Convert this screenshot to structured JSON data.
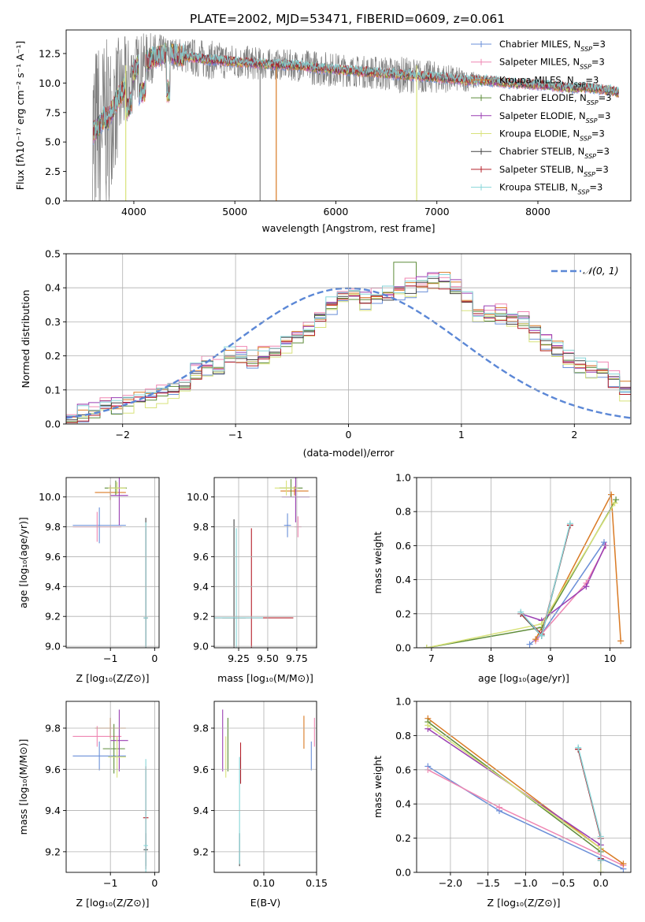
{
  "figure": {
    "title": "PLATE=2002, MJD=53471, FIBERID=0609, z=0.061"
  },
  "colors": {
    "Chabrier MILES": "#6a8fd8",
    "Salpeter MILES": "#ef86b2",
    "Kroupa MILES": "#d97a24",
    "Chabrier ELODIE": "#5e8c3a",
    "Salpeter ELODIE": "#9a3fb3",
    "Kroupa ELODIE": "#d8e27a",
    "Chabrier STELIB": "#444444",
    "Salpeter STELIB": "#b5202a",
    "Kroupa STELIB": "#86d6d8",
    "normal": "#5b87d6",
    "data": "#808080"
  },
  "chart_data": [
    {
      "id": "spectrum",
      "type": "line",
      "xlabel": "wavelength [Angstrom, rest frame]",
      "ylabel": "Flux [fλ10⁻¹⁷ erg cm⁻² s⁻¹ A⁻¹]",
      "xlim": [
        3330,
        8920
      ],
      "ylim": [
        0,
        14.5
      ],
      "xticks": [
        4000,
        5000,
        6000,
        7000,
        8000
      ],
      "yticks": [
        "0.0",
        "2.5",
        "5.0",
        "7.5",
        "10.0",
        "12.5"
      ],
      "legend_position": "top-right",
      "legend": [
        "Chabrier MILES, N_SSP=3",
        "Salpeter MILES, N_SSP=3",
        "Kroupa MILES, N_SSP=3",
        "Chabrier ELODIE, N_SSP=3",
        "Salpeter ELODIE, N_SSP=3",
        "Kroupa ELODIE, N_SSP=3",
        "Chabrier STELIB, N_SSP=3",
        "Salpeter STELIB, N_SSP=3",
        "Kroupa STELIB, N_SSP=3"
      ],
      "model_continuum": {
        "x": [
          3600,
          3650,
          3700,
          3750,
          3800,
          3850,
          3900,
          3950,
          4000,
          4050,
          4100,
          4200,
          4300,
          4400,
          4500,
          4700,
          5000,
          5300,
          5600,
          5900,
          6200,
          6500,
          6800,
          7100,
          7300,
          7500,
          7700,
          7900,
          8100,
          8300,
          8500,
          8700,
          8800
        ],
        "y": [
          5.8,
          6.3,
          7.0,
          7.0,
          8.0,
          8.8,
          9.5,
          10.0,
          11.0,
          11.6,
          11.8,
          12.2,
          12.5,
          12.5,
          12.3,
          12.0,
          11.8,
          11.6,
          11.5,
          11.2,
          11.0,
          10.8,
          10.6,
          10.4,
          10.2,
          10.2,
          10.0,
          9.9,
          9.8,
          9.6,
          9.6,
          9.4,
          9.2
        ]
      },
      "data_envelope": {
        "x": [
          3600,
          3800,
          4000,
          4200,
          4400,
          4600,
          5000,
          5400,
          5800,
          6200,
          6600,
          7000,
          7200,
          7400
        ],
        "y_max": [
          14.5,
          14.5,
          14.5,
          14.5,
          14.0,
          14.0,
          13.5,
          13.0,
          13.0,
          12.5,
          12.5,
          12.0,
          11.5,
          11.0
        ]
      },
      "spikes": [
        {
          "x": 3920,
          "y": 0.0,
          "series": "Kroupa ELODIE"
        },
        {
          "x": 5410,
          "y": 0.0,
          "series": "Kroupa MILES"
        },
        {
          "x": 6800,
          "y": 0.0,
          "series": "Kroupa ELODIE"
        },
        {
          "x": 5250,
          "y": 0.0,
          "series": "data"
        }
      ]
    },
    {
      "id": "residual_hist",
      "type": "step",
      "xlabel": "(data-model)/error",
      "ylabel": "Normed distribution",
      "xlim": [
        -2.5,
        2.5
      ],
      "ylim": [
        0,
        0.5
      ],
      "xticks": [
        "−2",
        "−1",
        "0",
        "1",
        "2"
      ],
      "yticks": [
        "0.0",
        "0.1",
        "0.2",
        "0.3",
        "0.4",
        "0.5"
      ],
      "legend_position": "top-right",
      "legend": [
        "𝒩(0, 1)"
      ],
      "bin_edges_start": -2.5,
      "bin_width": 0.1,
      "base_values": [
        0.03,
        0.03,
        0.04,
        0.05,
        0.05,
        0.06,
        0.07,
        0.08,
        0.09,
        0.1,
        0.12,
        0.15,
        0.17,
        0.16,
        0.2,
        0.2,
        0.19,
        0.2,
        0.22,
        0.24,
        0.26,
        0.28,
        0.31,
        0.35,
        0.37,
        0.38,
        0.36,
        0.37,
        0.38,
        0.39,
        0.4,
        0.41,
        0.42,
        0.42,
        0.4,
        0.36,
        0.32,
        0.32,
        0.32,
        0.31,
        0.3,
        0.27,
        0.24,
        0.22,
        0.19,
        0.17,
        0.16,
        0.15,
        0.13,
        0.1
      ],
      "series_offsets": [
        {
          "name": "Chabrier MILES",
          "shift": -0.012
        },
        {
          "name": "Salpeter MILES",
          "shift": 0.015
        },
        {
          "name": "Kroupa MILES",
          "shift": 0.008
        },
        {
          "name": "Chabrier ELODIE",
          "shift": -0.005
        },
        {
          "name": "Salpeter ELODIE",
          "shift": 0.01
        },
        {
          "name": "Kroupa ELODIE",
          "shift": -0.015
        },
        {
          "name": "Chabrier STELIB",
          "shift": 0.0
        },
        {
          "name": "Salpeter STELIB",
          "shift": -0.008
        },
        {
          "name": "Kroupa STELIB",
          "shift": 0.012
        }
      ]
    },
    {
      "id": "age_vs_Z",
      "type": "errorbar",
      "xlabel": "Z [log₁₀(Z/Z⊙)]",
      "ylabel": "age  [log₁₀(age/yr)]",
      "xlim": [
        -2.0,
        0.1
      ],
      "ylim": [
        8.99,
        10.13
      ],
      "xticks": [
        [
          "−1",
          -1
        ],
        [
          "0",
          0
        ]
      ],
      "yticks": [
        "9.0",
        "9.2",
        "9.4",
        "9.6",
        "9.8",
        "10.0"
      ],
      "points": [
        {
          "series": "Chabrier MILES",
          "x": -1.25,
          "xerr": 0.6,
          "y": 9.81,
          "yerr": 0.12
        },
        {
          "series": "Salpeter MILES",
          "x": -1.3,
          "xerr": 0.55,
          "y": 9.8,
          "yerr": 0.1
        },
        {
          "series": "Kroupa MILES",
          "x": -1.0,
          "xerr": 0.35,
          "y": 10.03,
          "yerr": 0.05
        },
        {
          "series": "Chabrier ELODIE",
          "x": -0.88,
          "xerr": 0.25,
          "y": 10.06,
          "yerr": 0.05
        },
        {
          "series": "Salpeter ELODIE",
          "x": -0.8,
          "xerr": 0.2,
          "y": 10.01,
          "yerr": 0.2
        },
        {
          "series": "Kroupa ELODIE",
          "x": -0.85,
          "xerr": 0.2,
          "y": 10.06,
          "yerr": 0.04
        },
        {
          "series": "Chabrier STELIB",
          "x": -0.2,
          "xerr": 0.05,
          "y": 9.19,
          "yerr": 0.67
        },
        {
          "series": "Salpeter STELIB",
          "x": -0.2,
          "xerr": 0.04,
          "y": 9.19,
          "yerr": 0.6
        },
        {
          "series": "Kroupa STELIB",
          "x": -0.2,
          "xerr": 0.05,
          "y": 9.19,
          "yerr": 0.64
        }
      ]
    },
    {
      "id": "age_vs_mass",
      "type": "errorbar",
      "xlabel": "mass [log₁₀(M/M⊙)]",
      "ylabel": "",
      "xlim": [
        9.04,
        9.92
      ],
      "ylim": [
        8.99,
        10.13
      ],
      "xticks": [
        [
          "9.25",
          9.25
        ],
        [
          "9.50",
          9.5
        ],
        [
          "9.75",
          9.75
        ]
      ],
      "yticks": [
        "9.0",
        "9.2",
        "9.4",
        "9.6",
        "9.8",
        "10.0"
      ],
      "points": [
        {
          "series": "Chabrier MILES",
          "x": 9.67,
          "xerr": 0.03,
          "y": 9.81,
          "yerr": 0.08
        },
        {
          "series": "Salpeter MILES",
          "x": 9.76,
          "xerr": 0.03,
          "y": 9.8,
          "yerr": 0.07
        },
        {
          "series": "Kroupa MILES",
          "x": 9.73,
          "xerr": 0.12,
          "y": 10.04,
          "yerr": 0.03
        },
        {
          "series": "Chabrier ELODIE",
          "x": 9.7,
          "xerr": 0.1,
          "y": 10.06,
          "yerr": 0.06
        },
        {
          "series": "Salpeter ELODIE",
          "x": 9.74,
          "xerr": 0.12,
          "y": 10.0,
          "yerr": 0.17
        },
        {
          "series": "Kroupa ELODIE",
          "x": 9.66,
          "xerr": 0.1,
          "y": 10.06,
          "yerr": 0.05
        },
        {
          "series": "Chabrier STELIB",
          "x": 9.21,
          "xerr": 0.1,
          "y": 9.19,
          "yerr": 0.66
        },
        {
          "series": "Salpeter STELIB",
          "x": 9.36,
          "xerr": 0.36,
          "y": 9.19,
          "yerr": 0.6
        },
        {
          "series": "Kroupa STELIB",
          "x": 9.23,
          "xerr": 0.23,
          "y": 9.19,
          "yerr": 0.6
        }
      ]
    },
    {
      "id": "weight_vs_age",
      "type": "line",
      "xlabel": "age  [log₁₀(age/yr)]",
      "ylabel": "mass weight",
      "xlim": [
        6.75,
        10.35
      ],
      "ylim": [
        0,
        1.0
      ],
      "xticks": [
        [
          "7",
          7
        ],
        [
          "8",
          8
        ],
        [
          "9",
          9
        ],
        [
          "10",
          10
        ]
      ],
      "yticks": [
        "0.0",
        "0.2",
        "0.4",
        "0.6",
        "0.8",
        "1.0"
      ],
      "series": [
        {
          "name": "Chabrier MILES",
          "x": [
            8.65,
            8.85,
            9.9
          ],
          "y": [
            0.02,
            0.08,
            0.62
          ]
        },
        {
          "name": "Salpeter MILES",
          "x": [
            8.75,
            9.6,
            9.93
          ],
          "y": [
            0.04,
            0.38,
            0.6
          ]
        },
        {
          "name": "Kroupa MILES",
          "x": [
            8.75,
            10.02,
            10.18
          ],
          "y": [
            0.05,
            0.9,
            0.04
          ]
        },
        {
          "name": "Chabrier ELODIE",
          "x": [
            6.92,
            8.85,
            10.1
          ],
          "y": [
            0.0,
            0.12,
            0.87
          ]
        },
        {
          "name": "Salpeter ELODIE",
          "x": [
            8.5,
            8.85,
            9.6,
            9.92
          ],
          "y": [
            0.2,
            0.16,
            0.36,
            0.6
          ]
        },
        {
          "name": "Kroupa ELODIE",
          "x": [
            6.92,
            8.85,
            10.08
          ],
          "y": [
            0.0,
            0.14,
            0.85
          ]
        },
        {
          "name": "Chabrier STELIB",
          "x": [
            8.5,
            8.85,
            9.33
          ],
          "y": [
            0.2,
            0.07,
            0.72
          ]
        },
        {
          "name": "Salpeter STELIB",
          "x": [
            8.5,
            8.85,
            9.33
          ],
          "y": [
            0.2,
            0.08,
            0.72
          ]
        },
        {
          "name": "Kroupa STELIB",
          "x": [
            8.5,
            8.85,
            9.33
          ],
          "y": [
            0.21,
            0.07,
            0.73
          ]
        }
      ]
    },
    {
      "id": "mass_vs_Z",
      "type": "errorbar",
      "xlabel": "Z [log₁₀(Z/Z⊙)]",
      "ylabel": "mass [log₁₀(M/M⊙)]",
      "xlim": [
        -2.0,
        0.1
      ],
      "ylim": [
        9.1,
        9.93
      ],
      "xticks": [
        [
          "−1",
          -1
        ],
        [
          "0",
          0
        ]
      ],
      "yticks": [
        "9.2",
        "9.4",
        "9.6",
        "9.8"
      ],
      "points": [
        {
          "series": "Chabrier MILES",
          "x": -1.25,
          "xerr": 0.6,
          "y": 9.665,
          "yerr": 0.07
        },
        {
          "series": "Salpeter MILES",
          "x": -1.3,
          "xerr": 0.55,
          "y": 9.76,
          "yerr": 0.05
        },
        {
          "series": "Kroupa MILES",
          "x": -1.0,
          "xerr": 0.35,
          "y": 9.8,
          "yerr": 0.05
        },
        {
          "series": "Chabrier ELODIE",
          "x": -0.92,
          "xerr": 0.25,
          "y": 9.7,
          "yerr": 0.12
        },
        {
          "series": "Salpeter ELODIE",
          "x": -0.8,
          "xerr": 0.2,
          "y": 9.74,
          "yerr": 0.15
        },
        {
          "series": "Kroupa ELODIE",
          "x": -0.85,
          "xerr": 0.2,
          "y": 9.66,
          "yerr": 0.1
        },
        {
          "series": "Chabrier STELIB",
          "x": -0.2,
          "xerr": 0.05,
          "y": 9.21,
          "yerr": 0.08
        },
        {
          "series": "Salpeter STELIB",
          "x": -0.2,
          "xerr": 0.06,
          "y": 9.365,
          "yerr": 0.25
        },
        {
          "series": "Kroupa STELIB",
          "x": -0.2,
          "xerr": 0.05,
          "y": 9.23,
          "yerr": 0.42
        }
      ]
    },
    {
      "id": "mass_vs_ebv",
      "type": "errorbar",
      "xlabel": "E(B-V)",
      "ylabel": "",
      "xlim": [
        0.053,
        0.15
      ],
      "ylim": [
        9.1,
        9.93
      ],
      "xticks": [
        [
          "0.10",
          0.1
        ],
        [
          "0.15",
          0.15
        ]
      ],
      "yticks": [
        "9.2",
        "9.4",
        "9.6",
        "9.8"
      ],
      "points": [
        {
          "series": "Chabrier MILES",
          "x": 0.145,
          "xerr": 0,
          "y": 9.665,
          "yerr": 0.07
        },
        {
          "series": "Salpeter MILES",
          "x": 0.148,
          "xerr": 0,
          "y": 9.78,
          "yerr": 0.07
        },
        {
          "series": "Kroupa MILES",
          "x": 0.138,
          "xerr": 0,
          "y": 9.78,
          "yerr": 0.08
        },
        {
          "series": "Chabrier ELODIE",
          "x": 0.066,
          "xerr": 0,
          "y": 9.72,
          "yerr": 0.13
        },
        {
          "series": "Salpeter ELODIE",
          "x": 0.061,
          "xerr": 0,
          "y": 9.74,
          "yerr": 0.15
        },
        {
          "series": "Kroupa ELODIE",
          "x": 0.064,
          "xerr": 0,
          "y": 9.66,
          "yerr": 0.1
        },
        {
          "series": "Chabrier STELIB",
          "x": 0.077,
          "xerr": 0,
          "y": 9.21,
          "yerr": 0.08
        },
        {
          "series": "Salpeter STELIB",
          "x": 0.078,
          "xerr": 0,
          "y": 9.63,
          "yerr": 0.1
        },
        {
          "series": "Kroupa STELIB",
          "x": 0.077,
          "xerr": 0,
          "y": 9.4,
          "yerr": 0.26
        }
      ]
    },
    {
      "id": "weight_vs_Z",
      "type": "line",
      "xlabel": "Z [log₁₀(Z/Z⊙)]",
      "ylabel": "mass weight",
      "xlim": [
        -2.45,
        0.4
      ],
      "ylim": [
        0,
        1.0
      ],
      "xticks": [
        [
          "−2.0",
          -2.0
        ],
        [
          "−1.5",
          -1.5
        ],
        [
          "−1.0",
          -1.0
        ],
        [
          "−0.5",
          -0.5
        ],
        [
          "0.0",
          0.0
        ]
      ],
      "yticks": [
        "0.0",
        "0.2",
        "0.4",
        "0.6",
        "0.8",
        "1.0"
      ],
      "series": [
        {
          "name": "Chabrier MILES",
          "x": [
            -2.3,
            -1.35,
            0.3
          ],
          "y": [
            0.62,
            0.36,
            0.02
          ]
        },
        {
          "name": "Salpeter MILES",
          "x": [
            -2.3,
            -1.35,
            0.3
          ],
          "y": [
            0.6,
            0.38,
            0.04
          ]
        },
        {
          "name": "Kroupa MILES",
          "x": [
            -2.3,
            0.0,
            0.3
          ],
          "y": [
            0.9,
            0.14,
            0.05
          ]
        },
        {
          "name": "Chabrier ELODIE",
          "x": [
            -2.3,
            0.0,
            0.0
          ],
          "y": [
            0.88,
            0.12,
            0.0
          ]
        },
        {
          "name": "Salpeter ELODIE",
          "x": [
            -2.3,
            0.0,
            0.0
          ],
          "y": [
            0.84,
            0.16,
            0.2
          ]
        },
        {
          "name": "Kroupa ELODIE",
          "x": [
            -2.3,
            0.0,
            0.0
          ],
          "y": [
            0.86,
            0.14,
            0.0
          ]
        },
        {
          "name": "Chabrier STELIB",
          "x": [
            -0.3,
            0.0,
            0.0
          ],
          "y": [
            0.72,
            0.2,
            0.07
          ]
        },
        {
          "name": "Salpeter STELIB",
          "x": [
            -0.3,
            0.0,
            0.0
          ],
          "y": [
            0.72,
            0.2,
            0.08
          ]
        },
        {
          "name": "Kroupa STELIB",
          "x": [
            -0.3,
            0.0,
            0.0
          ],
          "y": [
            0.73,
            0.21,
            0.07
          ]
        }
      ]
    }
  ]
}
